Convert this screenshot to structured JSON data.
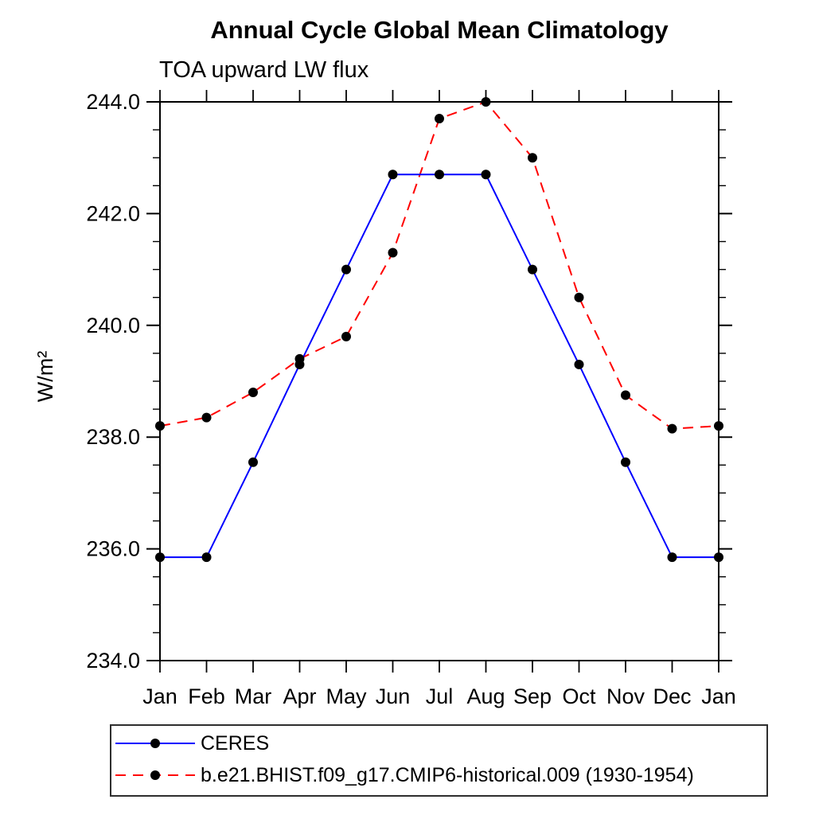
{
  "chart_data": {
    "type": "line",
    "title": "Annual Cycle Global Mean Climatology",
    "subtitle": "TOA upward LW flux",
    "ylabel": "W/m²",
    "ylim": [
      234.0,
      244.0
    ],
    "ytick_labels": [
      "234.0",
      "236.0",
      "238.0",
      "240.0",
      "242.0",
      "244.0"
    ],
    "ytick_values": [
      234.0,
      236.0,
      238.0,
      240.0,
      242.0,
      244.0
    ],
    "y_minor_step": 0.5,
    "grid": false,
    "legend_position": "bottom-left",
    "categories": [
      "Jan",
      "Feb",
      "Mar",
      "Apr",
      "May",
      "Jun",
      "Jul",
      "Aug",
      "Sep",
      "Oct",
      "Nov",
      "Dec",
      "Jan"
    ],
    "series": [
      {
        "name": "CERES",
        "line_style": "solid",
        "color": "#0000ff",
        "marker": "circle",
        "marker_color": "#000000",
        "values": [
          235.85,
          235.85,
          237.55,
          239.3,
          241.0,
          242.7,
          242.7,
          242.7,
          241.0,
          239.3,
          237.55,
          235.85,
          235.85
        ]
      },
      {
        "name": "b.e21.BHIST.f09_g17.CMIP6-historical.009 (1930-1954)",
        "line_style": "dashed",
        "color": "#ff0000",
        "marker": "circle",
        "marker_color": "#000000",
        "values": [
          238.2,
          238.35,
          238.8,
          239.4,
          239.8,
          241.3,
          243.7,
          244.0,
          243.0,
          240.5,
          238.75,
          238.15,
          238.2
        ]
      }
    ]
  }
}
